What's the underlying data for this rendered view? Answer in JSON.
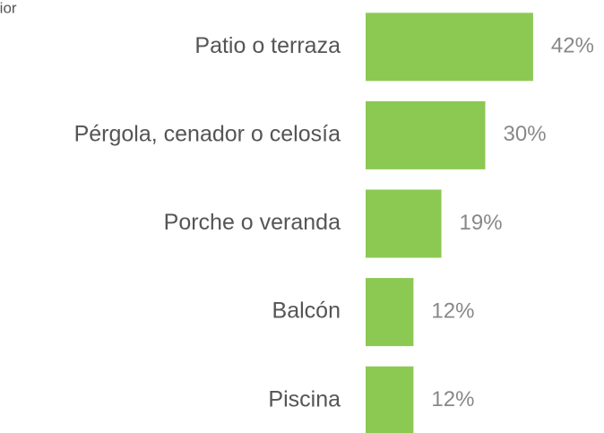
{
  "chart_data": {
    "type": "bar",
    "orientation": "horizontal",
    "title": "rior",
    "categories": [
      "Patio o terraza",
      "Pérgola, cenador o celosía",
      "Porche o veranda",
      "Balcón",
      "Piscina"
    ],
    "values": [
      42,
      30,
      19,
      12,
      12
    ],
    "value_labels": [
      "42%",
      "30%",
      "19%",
      "12%",
      "12%"
    ],
    "color": "#8cc953",
    "xlim": [
      0,
      60
    ]
  }
}
